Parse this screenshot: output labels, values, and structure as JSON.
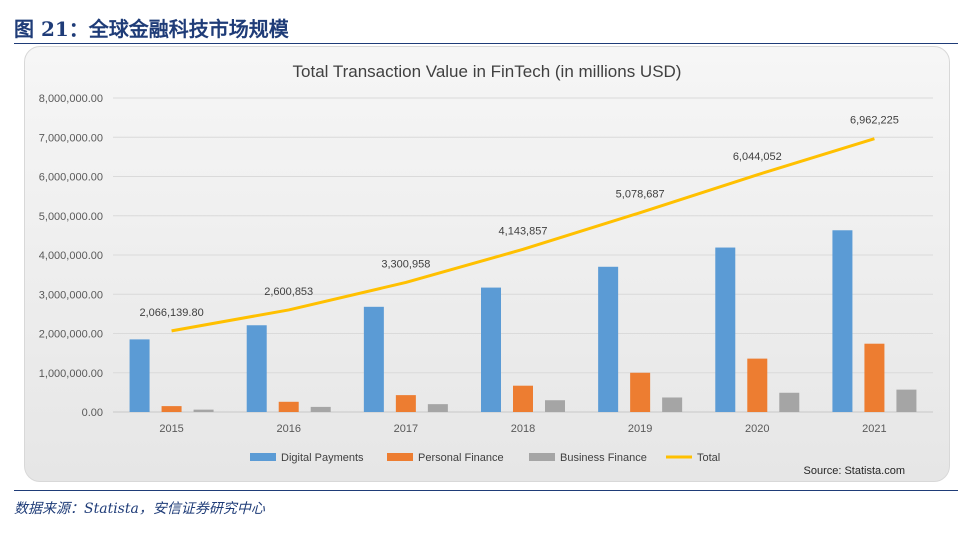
{
  "figure": {
    "title": "图 21：全球金融科技市场规模",
    "source": "数据来源：Statista，安信证券研究中心"
  },
  "chart_data": {
    "type": "bar",
    "title": "Total Transaction Value in FinTech (in millions USD)",
    "categories": [
      "2015",
      "2016",
      "2017",
      "2018",
      "2019",
      "2020",
      "2021"
    ],
    "series": [
      {
        "name": "Digital Payments",
        "type": "bar",
        "color": "#5b9bd5",
        "values": [
          1850000,
          2210000,
          2680000,
          3170000,
          3700000,
          4190000,
          4630000
        ]
      },
      {
        "name": "Personal Finance",
        "type": "bar",
        "color": "#ed7d31",
        "values": [
          150000,
          260000,
          430000,
          670000,
          1000000,
          1360000,
          1740000
        ]
      },
      {
        "name": "Business Finance",
        "type": "bar",
        "color": "#a5a5a5",
        "values": [
          60000,
          130000,
          200000,
          300000,
          370000,
          490000,
          570000
        ]
      },
      {
        "name": "Total",
        "type": "line",
        "color": "#ffc000",
        "values": [
          2066139.8,
          2600853,
          3300958,
          4143857,
          5078687,
          6044052,
          6962225
        ]
      }
    ],
    "data_labels": [
      "2,066,139.80",
      "2,600,853",
      "3,300,958",
      "4,143,857",
      "5,078,687",
      "6,044,052",
      "6,962,225"
    ],
    "yticks": [
      "0.00",
      "1,000,000.00",
      "2,000,000.00",
      "3,000,000.00",
      "4,000,000.00",
      "5,000,000.00",
      "6,000,000.00",
      "7,000,000.00",
      "8,000,000.00"
    ],
    "ylim": [
      0,
      8000000
    ],
    "grid": true,
    "legend": "bottom",
    "annotation": "Source: Statista.com"
  }
}
